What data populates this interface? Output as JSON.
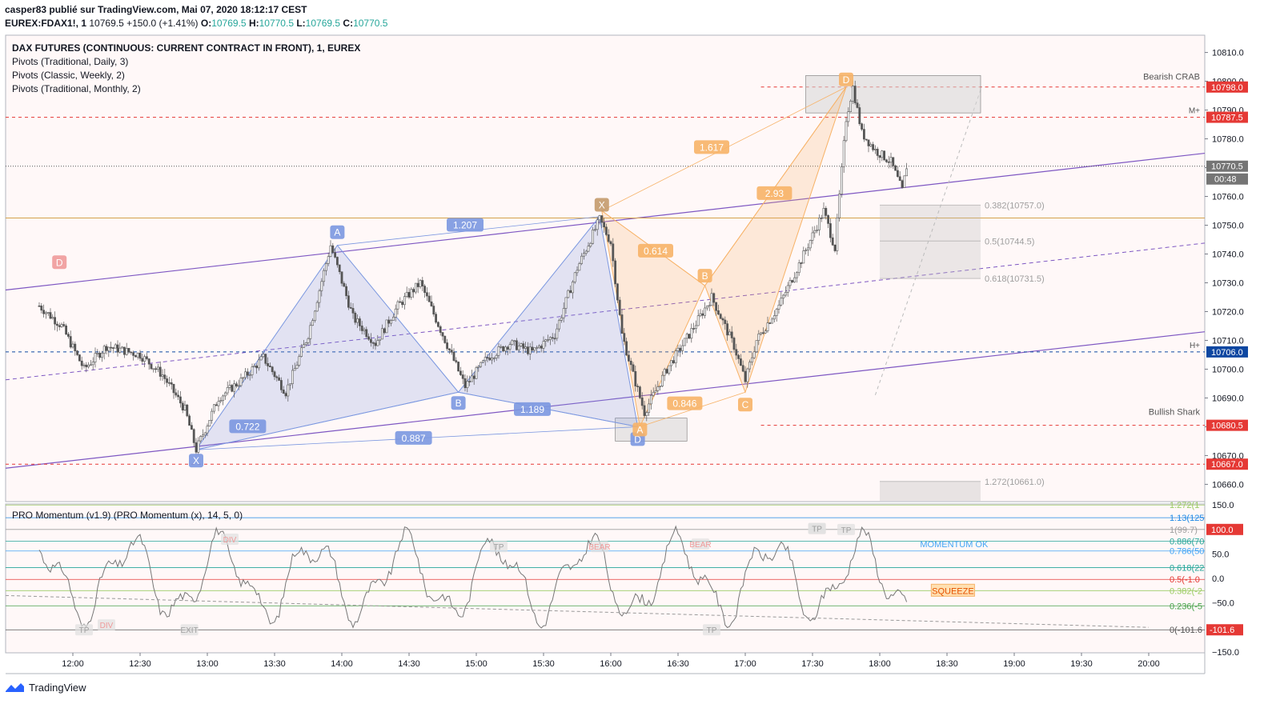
{
  "header": {
    "publisher": "casper83 publié sur TradingView.com, Mai 07, 2020 18:12:17 CEST",
    "symbol": "EUREX:FDAX1!, 1",
    "last": "10769.5",
    "change": "+150.0 (+1.41%)",
    "o_label": "O:",
    "o": "10769.5",
    "h_label": "H:",
    "h": "10770.5",
    "l_label": "L:",
    "l": "10769.5",
    "c_label": "C:",
    "c": "10770.5"
  },
  "legend": [
    "DAX FUTURES (CONTINUOUS: CURRENT CONTRACT IN FRONT), 1, EUREX",
    "Pivots (Traditional, Daily, 3)",
    "Pivots (Classic, Weekly, 2)",
    "Pivots (Traditional, Monthly, 2)"
  ],
  "indicator_title": "PRO Momentum (v1.9) (PRO Momentum (x), 14, 5, 0)",
  "footer_brand": "TradingView",
  "colors": {
    "bullish_pattern": "#7b97e0",
    "bearish_pattern": "#f7b267",
    "pivot_red": "#e53935",
    "pivot_blue": "#0d47a1",
    "channel": "#7e57c2",
    "candle": "#555555"
  },
  "chart_data": [
    {
      "type": "candlestick",
      "title": "DAX FUTURES (CONTINUOUS: CURRENT CONTRACT IN FRONT), 1, EUREX",
      "x_ticks": [
        "12:00",
        "12:30",
        "13:00",
        "13:30",
        "14:00",
        "14:30",
        "15:00",
        "15:30",
        "16:00",
        "16:30",
        "17:00",
        "17:30",
        "18:00",
        "18:30",
        "19:00",
        "19:30",
        "20:00"
      ],
      "y_ticks": [
        10660,
        10670,
        10680,
        10690,
        10700,
        10710,
        10720,
        10730,
        10740,
        10750,
        10760,
        10770,
        10780,
        10790,
        10800,
        10810
      ],
      "ylim": [
        10654,
        10816
      ],
      "price_path": [
        [
          "11:45",
          10722
        ],
        [
          "11:55",
          10715
        ],
        [
          "12:05",
          10700
        ],
        [
          "12:15",
          10708
        ],
        [
          "12:30",
          10705
        ],
        [
          "12:40",
          10698
        ],
        [
          "12:50",
          10686
        ],
        [
          "12:55",
          10672
        ],
        [
          "13:05",
          10690
        ],
        [
          "13:15",
          10696
        ],
        [
          "13:25",
          10704
        ],
        [
          "13:35",
          10692
        ],
        [
          "13:45",
          10712
        ],
        [
          "13:55",
          10743
        ],
        [
          "14:05",
          10718
        ],
        [
          "14:15",
          10709
        ],
        [
          "14:25",
          10722
        ],
        [
          "14:35",
          10730
        ],
        [
          "14:45",
          10712
        ],
        [
          "14:55",
          10694
        ],
        [
          "15:05",
          10704
        ],
        [
          "15:15",
          10709
        ],
        [
          "15:25",
          10706
        ],
        [
          "15:35",
          10712
        ],
        [
          "15:45",
          10735
        ],
        [
          "15:55",
          10752
        ],
        [
          "16:00",
          10744
        ],
        [
          "16:05",
          10712
        ],
        [
          "16:10",
          10698
        ],
        [
          "16:15",
          10685
        ],
        [
          "16:25",
          10700
        ],
        [
          "16:35",
          10712
        ],
        [
          "16:45",
          10725
        ],
        [
          "16:55",
          10708
        ],
        [
          "17:00",
          10696
        ],
        [
          "17:05",
          10710
        ],
        [
          "17:15",
          10722
        ],
        [
          "17:25",
          10738
        ],
        [
          "17:35",
          10755
        ],
        [
          "17:40",
          10742
        ],
        [
          "17:45",
          10787
        ],
        [
          "17:48",
          10798
        ],
        [
          "17:52",
          10782
        ],
        [
          "17:58",
          10776
        ],
        [
          "18:05",
          10772
        ],
        [
          "18:10",
          10762
        ],
        [
          "18:12",
          10770.5
        ]
      ],
      "last_price": 10770.5,
      "countdown": "00:48",
      "pivots": [
        {
          "label": "M+",
          "value": 10787.5
        },
        {
          "label": "",
          "value": 10798.0
        },
        {
          "label": "H+",
          "value": 10706.0
        },
        {
          "label": "",
          "value": 10680.5
        },
        {
          "label": "",
          "value": 10667.0
        }
      ],
      "horizontal_line": 10752.5,
      "bullish_shark": {
        "name": "Bullish Shark",
        "points": [
          {
            "label": "X",
            "time": "12:55",
            "price": 10672
          },
          {
            "label": "A",
            "time": "13:58",
            "price": 10743
          },
          {
            "label": "B",
            "time": "14:52",
            "price": 10692
          },
          {
            "label": "C",
            "time": "15:55",
            "price": 10753
          },
          {
            "label": "D",
            "time": "16:12",
            "price": 10680
          }
        ],
        "ratios": [
          {
            "label": "0.722",
            "time": "13:18",
            "price": 10680
          },
          {
            "label": "0.887",
            "time": "14:32",
            "price": 10676
          },
          {
            "label": "1.207",
            "time": "14:55",
            "price": 10750
          },
          {
            "label": "1.189",
            "time": "15:25",
            "price": 10686
          }
        ]
      },
      "bearish_crab": {
        "name": "Bearish CRAB",
        "points": [
          {
            "label": "X",
            "time": "15:56",
            "price": 10755
          },
          {
            "label": "A",
            "time": "16:13",
            "price": 10680
          },
          {
            "label": "B",
            "time": "16:42",
            "price": 10729
          },
          {
            "label": "C",
            "time": "17:00",
            "price": 10692
          },
          {
            "label": "D",
            "time": "17:45",
            "price": 10798
          }
        ],
        "ratios": [
          {
            "label": "1.617",
            "time": "16:45",
            "price": 10777
          },
          {
            "label": "0.614",
            "time": "16:20",
            "price": 10741
          },
          {
            "label": "2.93",
            "time": "17:13",
            "price": 10761
          },
          {
            "label": "0.846",
            "time": "16:33",
            "price": 10688
          }
        ]
      },
      "corner_label": {
        "label": "D",
        "time": "11:54",
        "price": 10737
      },
      "fib_levels": [
        {
          "label": "0.382(10757.0)",
          "value": 10757.0
        },
        {
          "label": "0.5(10744.5)",
          "value": 10744.5
        },
        {
          "label": "0.618(10731.5)",
          "value": 10731.5
        },
        {
          "label": "1.272(10661.0)",
          "value": 10661.0
        }
      ]
    },
    {
      "type": "line",
      "title": "PRO Momentum (v1.9) (PRO Momentum (x), 14, 5, 0)",
      "y_ticks": [
        150.0,
        100.0,
        50.0,
        0.0,
        -50.0,
        -150.0
      ],
      "ylim": [
        -152,
        152
      ],
      "current_values": [
        "100.0",
        "-101.6"
      ],
      "levels": [
        {
          "label": "1.272(1",
          "value": 150
        },
        {
          "label": "1.13(125",
          "value": 124
        },
        {
          "label": "1(99.7)",
          "value": 100
        },
        {
          "label": "0.886(70",
          "value": 76
        },
        {
          "label": "0.786(50",
          "value": 56
        },
        {
          "label": "0.618(22",
          "value": 22
        },
        {
          "label": "0.5(-1.0",
          "value": -2
        },
        {
          "label": "0.382(-2",
          "value": -25
        },
        {
          "label": "0.236(-5",
          "value": -56
        },
        {
          "label": "0(-101.6",
          "value": -105
        }
      ],
      "tags": [
        "TP",
        "DIV",
        "EXIT",
        "DIV",
        "BEAR",
        "TP",
        "TP",
        "BEAR",
        "TP",
        "TP",
        "TP"
      ],
      "status_labels": [
        "MOMENTUM OK",
        "SQUEEZE"
      ]
    }
  ]
}
